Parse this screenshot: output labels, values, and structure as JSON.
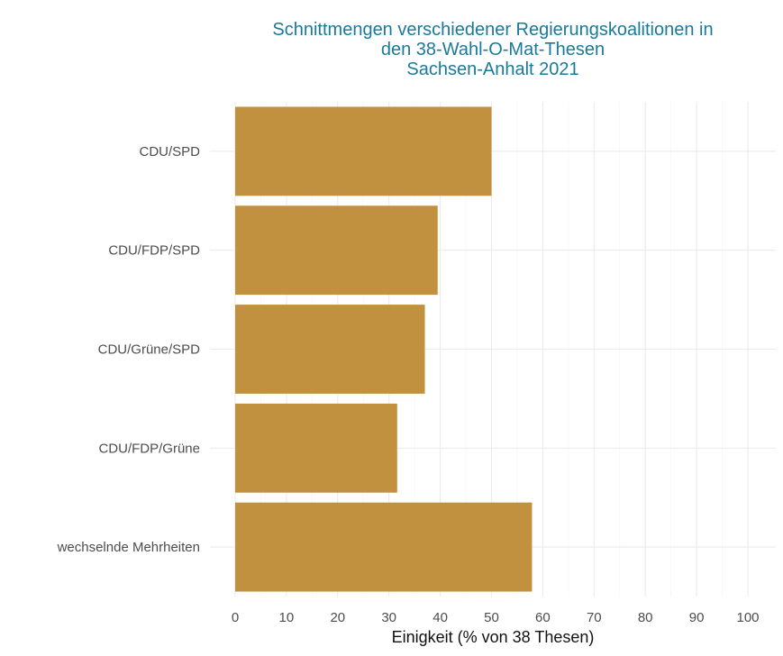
{
  "chart_data": {
    "type": "bar",
    "orientation": "horizontal",
    "title_lines": [
      "Schnittmengen verschiedener Regierungskoalitionen in",
      "den 38-Wahl-O-Mat-Thesen",
      "Sachsen-Anhalt 2021"
    ],
    "categories": [
      "CDU/SPD",
      "CDU/FDP/SPD",
      "CDU/Grüne/SPD",
      "CDU/FDP/Grüne",
      "wechselnde Mehrheiten"
    ],
    "values": [
      50,
      39.5,
      37,
      31.6,
      57.9
    ],
    "xlabel": "Einigkeit (% von 38 Thesen)",
    "xlim": [
      0,
      100
    ],
    "xticks": [
      0,
      10,
      20,
      30,
      40,
      50,
      60,
      70,
      80,
      90,
      100
    ],
    "grid": true,
    "colors": {
      "bar": "#c1913f",
      "title": "#1a7a9a"
    }
  }
}
